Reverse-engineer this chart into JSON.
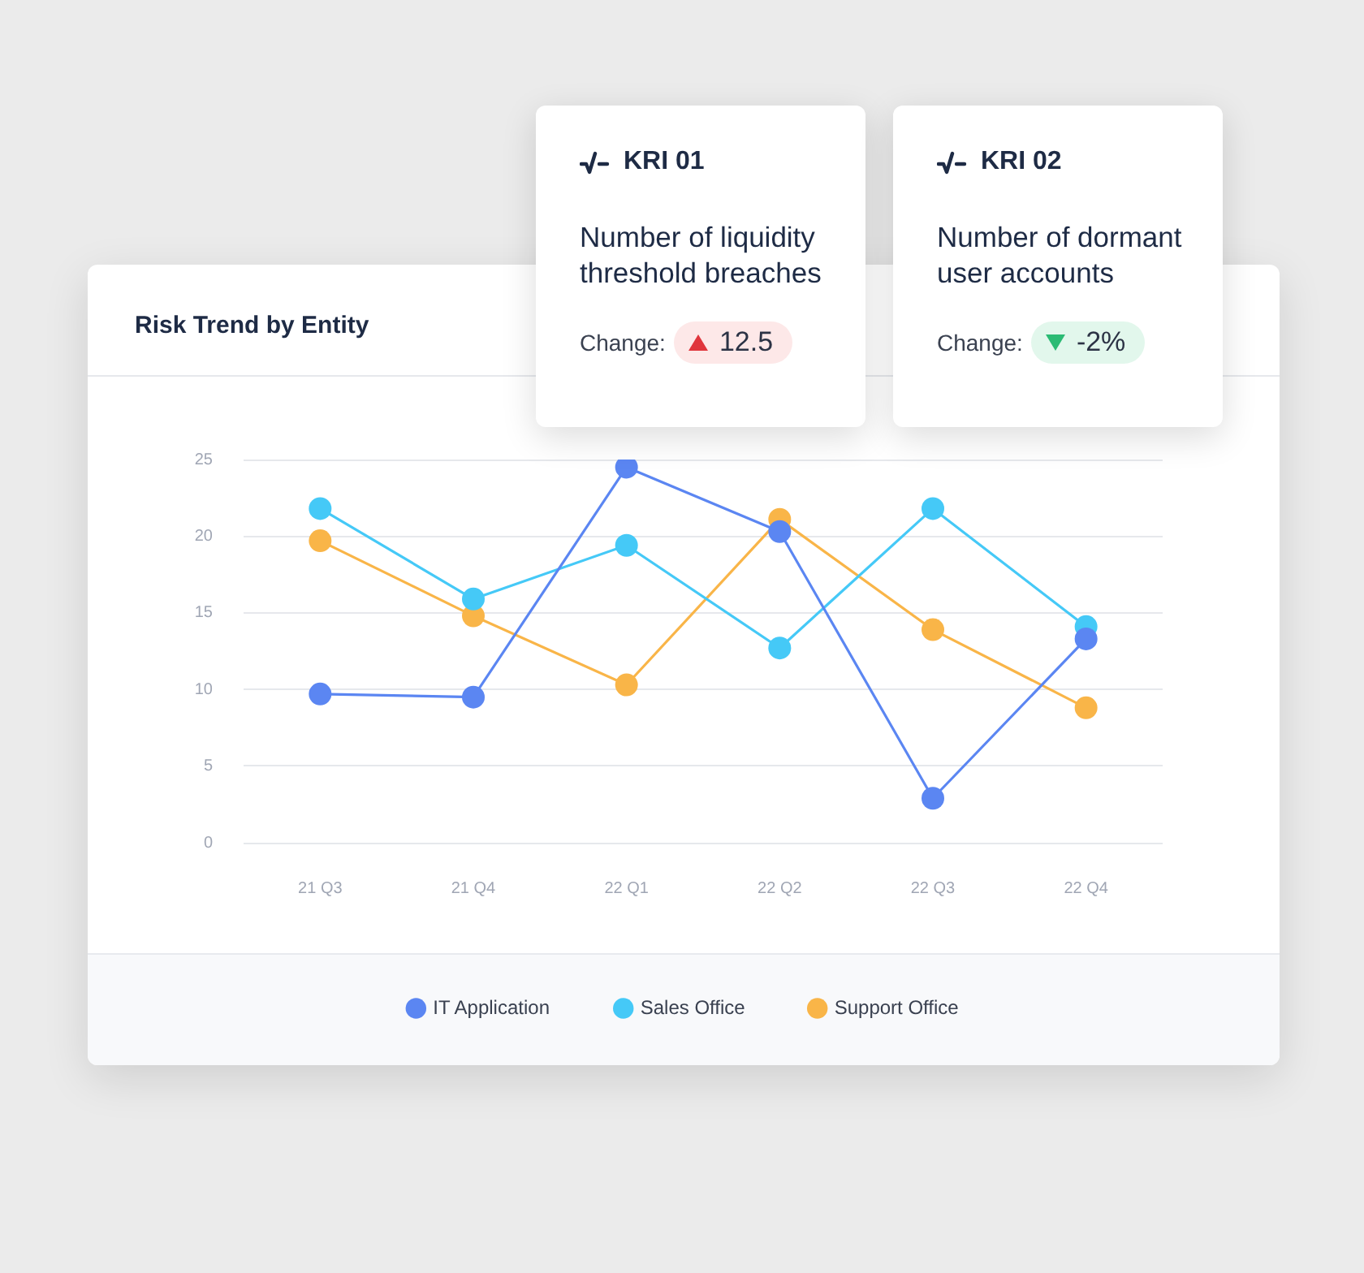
{
  "chart_data": [
    {
      "type": "line",
      "title": "Risk Trend by Entity",
      "categories": [
        "21 Q3",
        "21 Q4",
        "22 Q1",
        "22 Q2",
        "22 Q3",
        "22 Q4"
      ],
      "series": [
        {
          "name": "IT Application",
          "color": "#5b86f2",
          "values": [
            9.7,
            9.5,
            24.5,
            20.3,
            2.9,
            13.3
          ]
        },
        {
          "name": "Sales Office",
          "color": "#45c9f7",
          "values": [
            21.8,
            15.9,
            19.4,
            12.7,
            21.8,
            14.1
          ]
        },
        {
          "name": "Support Office",
          "color": "#f9b548",
          "values": [
            19.7,
            14.8,
            10.3,
            21.1,
            13.9,
            8.8
          ]
        }
      ],
      "ylim": [
        0,
        25
      ],
      "yticks": [
        0,
        5,
        10,
        15,
        20,
        25
      ],
      "grid": "y",
      "legend": "bottom",
      "marker": "circle",
      "line_style": "solid"
    },
    {
      "type": "other",
      "title": "KRI 01",
      "subtitle": "Number of liquidity threshold breaches",
      "annotations": [
        "Change:",
        "12.5"
      ]
    },
    {
      "type": "other",
      "title": "KRI 02",
      "subtitle": "Number of dormant user accounts",
      "annotations": [
        "Change:",
        "-2%"
      ]
    }
  ]
}
